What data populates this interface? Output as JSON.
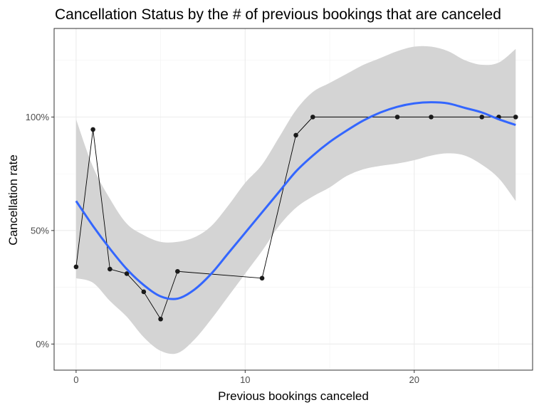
{
  "chart_data": {
    "type": "line",
    "title": "Cancellation Status by the # of previous bookings that are canceled",
    "xlabel": "Previous bookings canceled",
    "ylabel": "Cancellation rate",
    "xlim": [
      -1.3,
      27.0
    ],
    "ylim": [
      -0.115,
      1.39
    ],
    "x_ticks": [
      0,
      10,
      20
    ],
    "x_tick_labels": [
      "0",
      "10",
      "20"
    ],
    "y_ticks": [
      0,
      0.5,
      1.0
    ],
    "y_tick_labels": [
      "0%",
      "50%",
      "100%"
    ],
    "grid": true,
    "series": [
      {
        "kind": "observed",
        "x": [
          0,
          1,
          2,
          3,
          4,
          5,
          6,
          11,
          13,
          14,
          19,
          21,
          24,
          25,
          26
        ],
        "y": [
          0.34,
          0.945,
          0.33,
          0.31,
          0.23,
          0.11,
          0.32,
          0.29,
          0.92,
          1.0,
          1.0,
          1.0,
          1.0,
          1.0,
          1.0
        ],
        "color": "#000000"
      },
      {
        "kind": "smooth",
        "x": [
          0,
          1,
          2,
          3,
          4,
          5,
          6,
          7,
          8,
          9,
          10,
          11,
          12,
          13,
          14,
          15,
          16,
          17,
          18,
          19,
          20,
          21,
          22,
          23,
          24,
          25,
          26
        ],
        "y": [
          0.63,
          0.52,
          0.42,
          0.33,
          0.26,
          0.21,
          0.2,
          0.24,
          0.31,
          0.4,
          0.49,
          0.58,
          0.67,
          0.76,
          0.83,
          0.89,
          0.94,
          0.985,
          1.02,
          1.045,
          1.06,
          1.065,
          1.06,
          1.04,
          1.02,
          0.99,
          0.965
        ],
        "ci_lower": [
          0.29,
          0.27,
          0.19,
          0.12,
          0.03,
          -0.03,
          -0.04,
          0.02,
          0.11,
          0.21,
          0.31,
          0.41,
          0.52,
          0.6,
          0.65,
          0.69,
          0.74,
          0.77,
          0.785,
          0.795,
          0.81,
          0.83,
          0.84,
          0.83,
          0.79,
          0.73,
          0.63
        ],
        "ci_upper": [
          0.99,
          0.78,
          0.64,
          0.53,
          0.48,
          0.45,
          0.45,
          0.47,
          0.52,
          0.61,
          0.71,
          0.79,
          0.91,
          1.03,
          1.11,
          1.15,
          1.19,
          1.23,
          1.26,
          1.29,
          1.31,
          1.31,
          1.29,
          1.25,
          1.23,
          1.24,
          1.3
        ],
        "color": "#3366ff",
        "band_color": "#d4d4d4"
      }
    ]
  }
}
